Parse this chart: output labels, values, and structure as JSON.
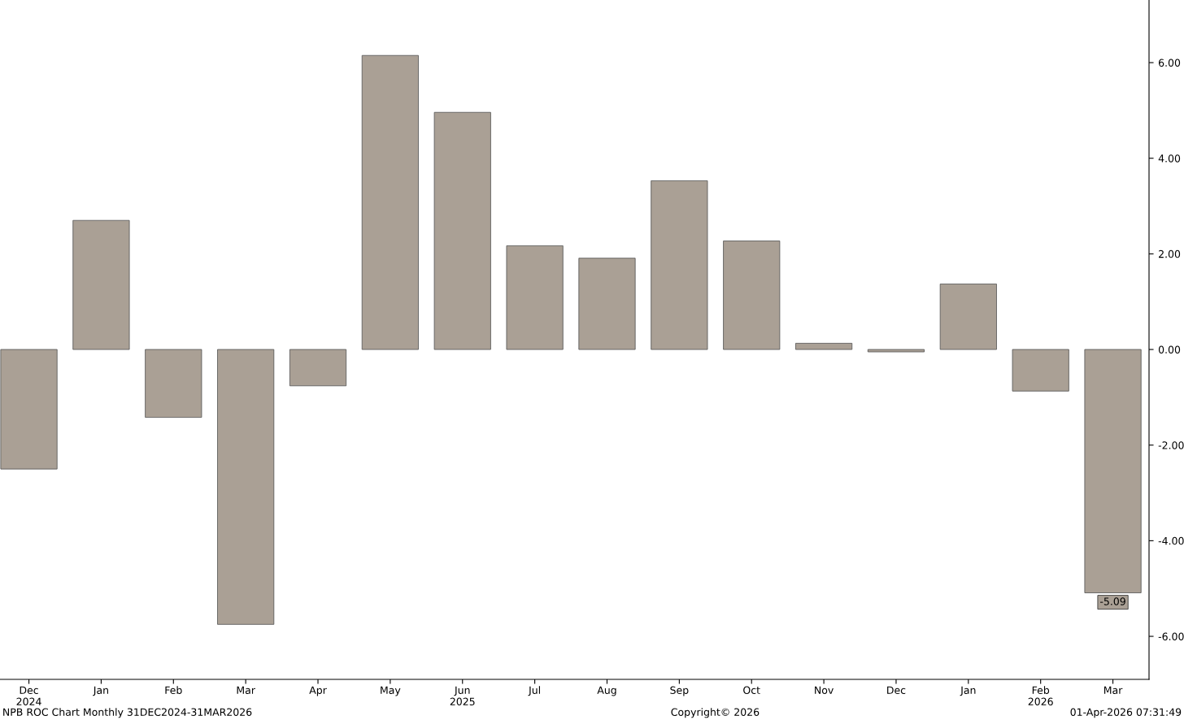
{
  "chart_data": {
    "type": "bar",
    "categories": [
      "Dec\n2024",
      "Jan",
      "Feb",
      "Mar",
      "Apr",
      "May",
      "Jun\n2025",
      "Jul",
      "Aug",
      "Sep",
      "Oct",
      "Nov",
      "Dec",
      "Jan",
      "Feb\n2026",
      "Mar"
    ],
    "values": [
      -2.5,
      2.7,
      -1.42,
      -5.75,
      -0.76,
      6.15,
      4.96,
      2.17,
      1.91,
      3.53,
      2.27,
      0.13,
      -0.05,
      1.37,
      -0.87,
      -5.09
    ],
    "value_labels": [
      null,
      null,
      null,
      null,
      null,
      null,
      null,
      null,
      null,
      null,
      null,
      null,
      null,
      null,
      null,
      "-5.09"
    ],
    "color": "#aaa095",
    "ylim": [
      -6.9,
      7.31
    ],
    "yticks": [
      {
        "value": -6,
        "label": "-6.00"
      },
      {
        "value": -4,
        "label": "-4.00"
      },
      {
        "value": -2,
        "label": "-2.00"
      },
      {
        "value": 0,
        "label": "0.00"
      },
      {
        "value": 2,
        "label": "2.00"
      },
      {
        "value": 4,
        "label": "4.00"
      },
      {
        "value": 6,
        "label": "6.00"
      }
    ],
    "grid": false,
    "annotations": [
      "NPB ROC Chart Monthly 31DEC2024-31MAR2026",
      "Copyright© 2026",
      "01-Apr-2026 07:31:49"
    ]
  }
}
